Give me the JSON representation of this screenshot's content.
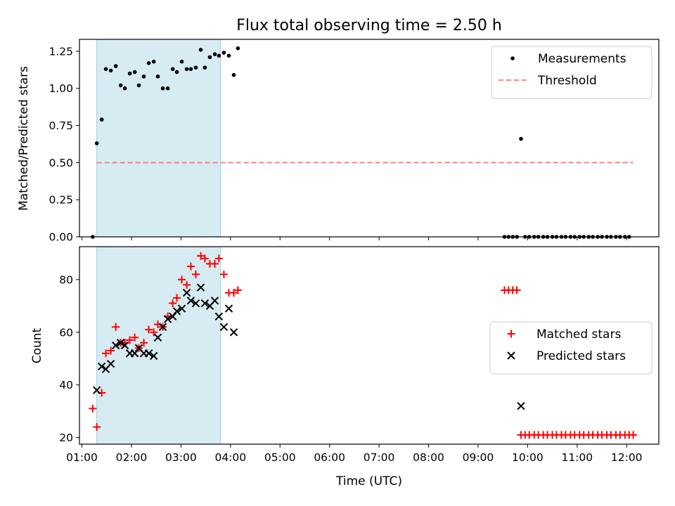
{
  "figure": {
    "title": "Flux total observing time = 2.50 h",
    "xlabel": "Time (UTC)"
  },
  "chart_data": [
    {
      "type": "scatter",
      "panel": "top",
      "title": "Flux total observing time = 2.50 h",
      "ylabel": "Matched/Predicted stars",
      "xlim": [
        "00:57",
        "12:39"
      ],
      "ylim": [
        0.0,
        1.33
      ],
      "x_ticks": [
        "01:00",
        "02:00",
        "03:00",
        "04:00",
        "05:00",
        "06:00",
        "07:00",
        "08:00",
        "09:00",
        "10:00",
        "11:00",
        "12:00"
      ],
      "y_ticks": [
        "0.00",
        "0.25",
        "0.50",
        "0.75",
        "1.00",
        "1.25"
      ],
      "shaded_region": {
        "x_start": "01:18",
        "x_end": "03:48",
        "color": "#add8e6"
      },
      "legend": {
        "position": "top-right",
        "entries": [
          "Measurements",
          "Threshold"
        ]
      },
      "series": [
        {
          "name": "Measurements",
          "marker": "dot",
          "color": "#000000",
          "points": [
            [
              "01:13",
              0.0
            ],
            [
              "01:18",
              0.63
            ],
            [
              "01:24",
              0.79
            ],
            [
              "01:29",
              1.13
            ],
            [
              "01:35",
              1.12
            ],
            [
              "01:41",
              1.15
            ],
            [
              "01:47",
              1.02
            ],
            [
              "01:52",
              1.0
            ],
            [
              "01:58",
              1.1
            ],
            [
              "02:04",
              1.11
            ],
            [
              "02:09",
              1.02
            ],
            [
              "02:15",
              1.08
            ],
            [
              "02:21",
              1.17
            ],
            [
              "02:27",
              1.18
            ],
            [
              "02:32",
              1.08
            ],
            [
              "02:38",
              1.0
            ],
            [
              "02:44",
              1.0
            ],
            [
              "02:50",
              1.13
            ],
            [
              "02:55",
              1.11
            ],
            [
              "03:01",
              1.18
            ],
            [
              "03:07",
              1.13
            ],
            [
              "03:12",
              1.13
            ],
            [
              "03:18",
              1.14
            ],
            [
              "03:24",
              1.26
            ],
            [
              "03:29",
              1.14
            ],
            [
              "03:35",
              1.21
            ],
            [
              "03:41",
              1.23
            ],
            [
              "03:46",
              1.22
            ],
            [
              "03:52",
              1.24
            ],
            [
              "03:58",
              1.22
            ],
            [
              "04:04",
              1.09
            ],
            [
              "04:09",
              1.27
            ],
            [
              "09:52",
              0.66
            ],
            [
              "09:32",
              0.0
            ],
            [
              "09:37",
              0.0
            ],
            [
              "09:42",
              0.0
            ],
            [
              "09:47",
              0.0
            ],
            [
              "09:57",
              0.0
            ],
            [
              "10:02",
              0.0
            ],
            [
              "10:08",
              0.0
            ],
            [
              "10:13",
              0.0
            ],
            [
              "10:19",
              0.0
            ],
            [
              "10:24",
              0.0
            ],
            [
              "10:30",
              0.0
            ],
            [
              "10:35",
              0.0
            ],
            [
              "10:41",
              0.0
            ],
            [
              "10:46",
              0.0
            ],
            [
              "10:52",
              0.0
            ],
            [
              "10:57",
              0.0
            ],
            [
              "11:03",
              0.0
            ],
            [
              "11:08",
              0.0
            ],
            [
              "11:14",
              0.0
            ],
            [
              "11:19",
              0.0
            ],
            [
              "11:25",
              0.0
            ],
            [
              "11:30",
              0.0
            ],
            [
              "11:36",
              0.0
            ],
            [
              "11:41",
              0.0
            ],
            [
              "11:47",
              0.0
            ],
            [
              "11:52",
              0.0
            ],
            [
              "11:58",
              0.0
            ],
            [
              "12:03",
              0.0
            ]
          ]
        },
        {
          "name": "Threshold",
          "style": "dashed",
          "color": "#ff7f7f",
          "points": [
            [
              "01:18",
              0.5
            ],
            [
              "12:08",
              0.5
            ]
          ]
        }
      ]
    },
    {
      "type": "scatter",
      "panel": "bottom",
      "xlabel": "Time (UTC)",
      "ylabel": "Count",
      "xlim": [
        "00:57",
        "12:39"
      ],
      "ylim": [
        17.5,
        92.5
      ],
      "x_ticks": [
        "01:00",
        "02:00",
        "03:00",
        "04:00",
        "05:00",
        "06:00",
        "07:00",
        "08:00",
        "09:00",
        "10:00",
        "11:00",
        "12:00"
      ],
      "y_ticks": [
        "20",
        "40",
        "60",
        "80"
      ],
      "shaded_region": {
        "x_start": "01:18",
        "x_end": "03:48",
        "color": "#add8e6"
      },
      "legend": {
        "position": "center-right",
        "entries": [
          "Matched stars",
          "Predicted stars"
        ]
      },
      "series": [
        {
          "name": "Matched stars",
          "marker": "plus",
          "color": "#ff0000",
          "points": [
            [
              "01:13",
              31
            ],
            [
              "01:18",
              24
            ],
            [
              "01:24",
              37
            ],
            [
              "01:29",
              52
            ],
            [
              "01:35",
              53
            ],
            [
              "01:41",
              62
            ],
            [
              "01:47",
              56
            ],
            [
              "01:52",
              56
            ],
            [
              "01:58",
              57
            ],
            [
              "02:04",
              58
            ],
            [
              "02:09",
              54
            ],
            [
              "02:15",
              56
            ],
            [
              "02:21",
              61
            ],
            [
              "02:27",
              60
            ],
            [
              "02:32",
              63
            ],
            [
              "02:38",
              62
            ],
            [
              "02:44",
              66
            ],
            [
              "02:50",
              71
            ],
            [
              "02:55",
              73
            ],
            [
              "03:01",
              80
            ],
            [
              "03:07",
              78
            ],
            [
              "03:12",
              85
            ],
            [
              "03:18",
              82
            ],
            [
              "03:24",
              89
            ],
            [
              "03:29",
              88
            ],
            [
              "03:35",
              86
            ],
            [
              "03:41",
              86
            ],
            [
              "03:46",
              88
            ],
            [
              "03:52",
              82
            ],
            [
              "03:58",
              75
            ],
            [
              "04:04",
              75
            ],
            [
              "04:09",
              76
            ],
            [
              "09:32",
              76
            ],
            [
              "09:37",
              76
            ],
            [
              "09:42",
              76
            ],
            [
              "09:47",
              76
            ],
            [
              "09:52",
              21
            ],
            [
              "09:57",
              21
            ],
            [
              "10:02",
              21
            ],
            [
              "10:08",
              21
            ],
            [
              "10:13",
              21
            ],
            [
              "10:19",
              21
            ],
            [
              "10:24",
              21
            ],
            [
              "10:30",
              21
            ],
            [
              "10:35",
              21
            ],
            [
              "10:41",
              21
            ],
            [
              "10:46",
              21
            ],
            [
              "10:52",
              21
            ],
            [
              "10:57",
              21
            ],
            [
              "11:03",
              21
            ],
            [
              "11:08",
              21
            ],
            [
              "11:14",
              21
            ],
            [
              "11:19",
              21
            ],
            [
              "11:25",
              21
            ],
            [
              "11:30",
              21
            ],
            [
              "11:36",
              21
            ],
            [
              "11:41",
              21
            ],
            [
              "11:47",
              21
            ],
            [
              "11:52",
              21
            ],
            [
              "11:58",
              21
            ],
            [
              "12:03",
              21
            ],
            [
              "12:08",
              21
            ]
          ]
        },
        {
          "name": "Predicted stars",
          "marker": "x",
          "color": "#000000",
          "points": [
            [
              "01:18",
              38
            ],
            [
              "01:24",
              47
            ],
            [
              "01:29",
              46
            ],
            [
              "01:35",
              48
            ],
            [
              "01:41",
              55
            ],
            [
              "01:47",
              56
            ],
            [
              "01:52",
              55
            ],
            [
              "01:58",
              52
            ],
            [
              "02:04",
              52
            ],
            [
              "02:09",
              54
            ],
            [
              "02:15",
              52
            ],
            [
              "02:21",
              52
            ],
            [
              "02:27",
              51
            ],
            [
              "02:32",
              58
            ],
            [
              "02:38",
              62
            ],
            [
              "02:44",
              65
            ],
            [
              "02:50",
              66
            ],
            [
              "02:55",
              68
            ],
            [
              "03:01",
              69
            ],
            [
              "03:07",
              75
            ],
            [
              "03:12",
              72
            ],
            [
              "03:18",
              71
            ],
            [
              "03:24",
              77
            ],
            [
              "03:29",
              71
            ],
            [
              "03:35",
              70
            ],
            [
              "03:41",
              72
            ],
            [
              "03:46",
              66
            ],
            [
              "03:52",
              62
            ],
            [
              "03:58",
              69
            ],
            [
              "04:04",
              60
            ],
            [
              "09:52",
              32
            ]
          ]
        }
      ]
    }
  ]
}
